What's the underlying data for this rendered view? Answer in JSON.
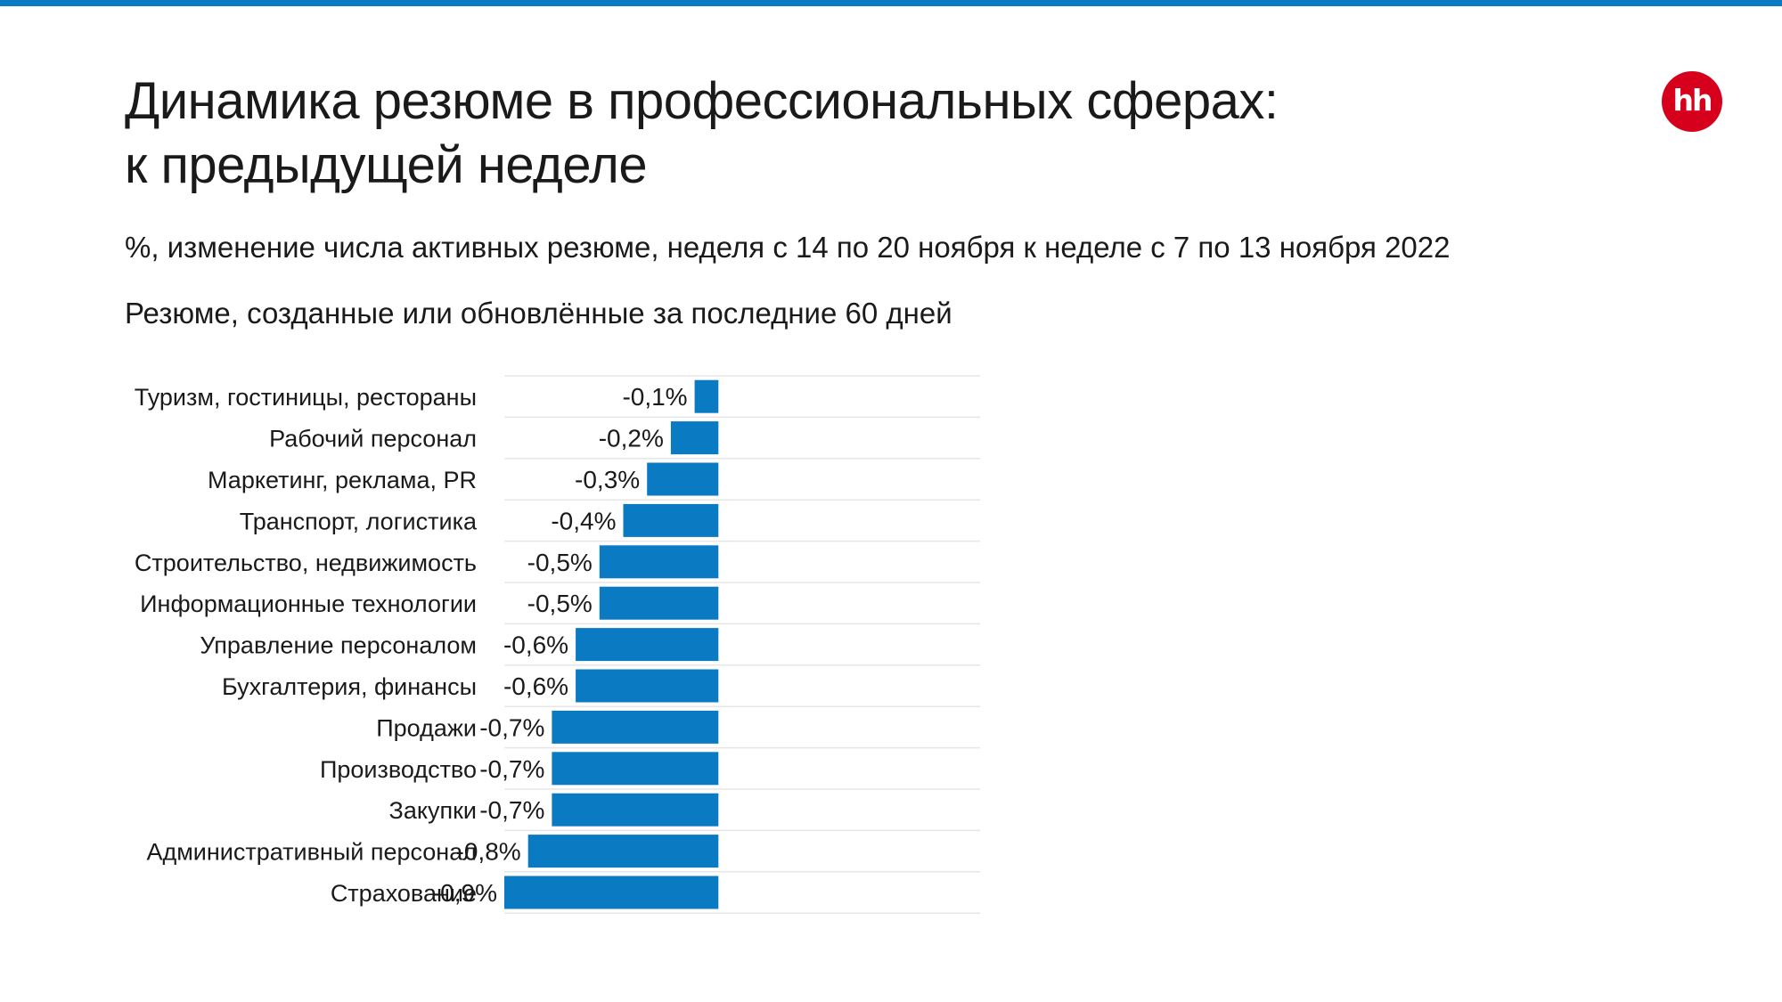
{
  "title_line1": "Динамика резюме в профессиональных сферах:",
  "title_line2": "к предыдущей неделе",
  "subtitle": "%, изменение числа активных резюме, неделя с 14 по 20 ноября к неделе с 7 по 13 ноября 2022",
  "note": "Резюме, созданные или обновлённые за последние 60 дней",
  "logo_text": "hh",
  "colors": {
    "accent": "#0a7ac3",
    "bar": "#0a7ac3",
    "logo": "#d6001c",
    "grid": "#e6e6e6",
    "text": "#1a1a1a"
  },
  "chart_data": {
    "type": "bar",
    "orientation": "horizontal",
    "categories": [
      "Туризм, гостиницы, рестораны",
      "Рабочий персонал",
      "Маркетинг, реклама, PR",
      "Транспорт, логистика",
      "Строительство, недвижимость",
      "Информационные технологии",
      "Управление персоналом",
      "Бухгалтерия, финансы",
      "Продажи",
      "Производство",
      "Закупки",
      "Административный персонал",
      "Страхование"
    ],
    "values": [
      -0.1,
      -0.2,
      -0.3,
      -0.4,
      -0.5,
      -0.5,
      -0.6,
      -0.6,
      -0.7,
      -0.7,
      -0.7,
      -0.8,
      -0.9
    ],
    "labels": [
      "-0,1%",
      "-0,2%",
      "-0,3%",
      "-0,4%",
      "-0,5%",
      "-0,5%",
      "-0,6%",
      "-0,6%",
      "-0,7%",
      "-0,7%",
      "-0,7%",
      "-0,8%",
      "-0,9%"
    ],
    "unit": "%",
    "xlim": [
      -0.9,
      1.1
    ],
    "grid": "horizontal row separators",
    "legend": "none"
  }
}
